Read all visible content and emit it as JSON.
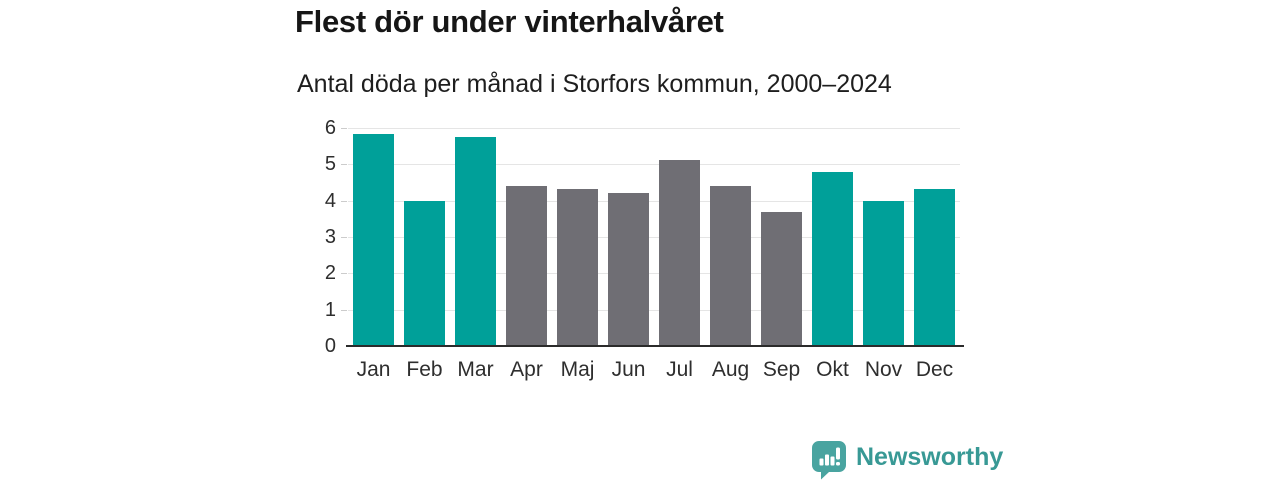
{
  "header": {
    "title": "Flest dör under vinterhalvåret",
    "subtitle": "Antal döda per månad i Storfors kommun, 2000–2024"
  },
  "chart_data": {
    "type": "bar",
    "title": "Flest dör under vinterhalvåret",
    "subtitle": "Antal döda per månad i Storfors kommun, 2000–2024",
    "categories": [
      "Jan",
      "Feb",
      "Mar",
      "Apr",
      "Maj",
      "Jun",
      "Jul",
      "Aug",
      "Sep",
      "Okt",
      "Nov",
      "Dec"
    ],
    "values": [
      5.84,
      4.0,
      5.76,
      4.4,
      4.32,
      4.2,
      5.12,
      4.4,
      3.68,
      4.8,
      4.0,
      4.32
    ],
    "bar_color_keys": [
      "winter",
      "winter",
      "winter",
      "summer",
      "summer",
      "summer",
      "summer",
      "summer",
      "summer",
      "winter",
      "winter",
      "winter"
    ],
    "palette": {
      "winter": "#00a099",
      "summer": "#6f6e74"
    },
    "xlabel": "",
    "ylabel": "",
    "ylim": [
      0,
      6
    ],
    "yticks": [
      0,
      1,
      2,
      3,
      4,
      5,
      6
    ],
    "grid": true,
    "legend_position": "none",
    "gridline_color": "#e5e5e5",
    "axis_line_color": "#2b2b2b",
    "tick_color": "#cccccc"
  },
  "branding": {
    "logo_text": "Newsworthy",
    "logo_icon": "bar-chart-speech-bubble-icon",
    "logo_bubble_color": "#49a4a0",
    "wordmark_color": "#389995"
  }
}
